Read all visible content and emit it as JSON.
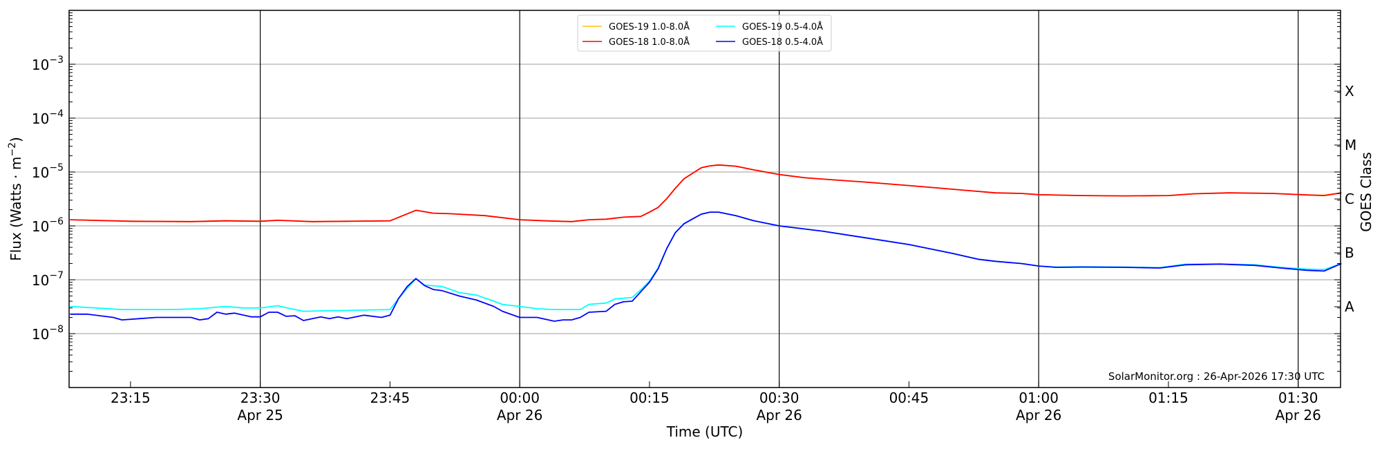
{
  "chart_data": {
    "type": "line",
    "title": "",
    "xlabel": "Time (UTC)",
    "ylabel": "Flux (Watts · m",
    "ylabel_sup": "−2",
    "ylabel_close": ")",
    "right_label": "GOES Class",
    "yscale": "log",
    "ylim": [
      1e-09,
      0.01
    ],
    "xlim": [
      "23:08",
      "01:35"
    ],
    "grid": true,
    "legend_position": "top-center",
    "watermark": "SolarMonitor.org : 26-Apr-2026 17:30 UTC",
    "y_ticks": [
      {
        "exp": -3,
        "base": "10",
        "sup": "−3"
      },
      {
        "exp": -4,
        "base": "10",
        "sup": "−4"
      },
      {
        "exp": -5,
        "base": "10",
        "sup": "−5"
      },
      {
        "exp": -6,
        "base": "10",
        "sup": "−6"
      },
      {
        "exp": -7,
        "base": "10",
        "sup": "−7"
      },
      {
        "exp": -8,
        "base": "10",
        "sup": "−8"
      }
    ],
    "x_ticks": [
      {
        "time": "23:15",
        "label": "23:15",
        "date": ""
      },
      {
        "time": "23:30",
        "label": "23:30",
        "date": "Apr 25"
      },
      {
        "time": "23:45",
        "label": "23:45",
        "date": ""
      },
      {
        "time": "00:00",
        "label": "00:00",
        "date": "Apr 26"
      },
      {
        "time": "00:15",
        "label": "00:15",
        "date": ""
      },
      {
        "time": "00:30",
        "label": "00:30",
        "date": "Apr 26"
      },
      {
        "time": "00:45",
        "label": "00:45",
        "date": ""
      },
      {
        "time": "01:00",
        "label": "01:00",
        "date": "Apr 26"
      },
      {
        "time": "01:15",
        "label": "01:15",
        "date": ""
      },
      {
        "time": "01:30",
        "label": "01:30",
        "date": "Apr 26"
      }
    ],
    "goes_classes": [
      {
        "label": "X",
        "exp": -3.5
      },
      {
        "label": "M",
        "exp": -4.5
      },
      {
        "label": "C",
        "exp": -5.5
      },
      {
        "label": "B",
        "exp": -6.5
      },
      {
        "label": "A",
        "exp": -7.5
      }
    ],
    "series": [
      {
        "name": "GOES-19 1.0-8.0Å",
        "color": "#ffc000",
        "points": [
          [
            "23:08",
            1.3e-06
          ],
          [
            "23:15",
            1.22e-06
          ],
          [
            "23:22",
            1.2e-06
          ],
          [
            "23:26",
            1.25e-06
          ],
          [
            "23:30",
            1.22e-06
          ],
          [
            "23:32",
            1.27e-06
          ],
          [
            "23:36",
            1.2e-06
          ],
          [
            "23:40",
            1.22e-06
          ],
          [
            "23:45",
            1.24e-06
          ],
          [
            "23:48",
            1.95e-06
          ],
          [
            "23:50",
            1.72e-06
          ],
          [
            "23:52",
            1.68e-06
          ],
          [
            "23:56",
            1.55e-06
          ],
          [
            "00:00",
            1.3e-06
          ],
          [
            "00:03",
            1.24e-06
          ],
          [
            "00:06",
            1.2e-06
          ],
          [
            "00:08",
            1.3e-06
          ],
          [
            "00:10",
            1.33e-06
          ],
          [
            "00:12",
            1.45e-06
          ],
          [
            "00:14",
            1.5e-06
          ],
          [
            "00:15",
            1.8e-06
          ],
          [
            "00:16",
            2.2e-06
          ],
          [
            "00:17",
            3.2e-06
          ],
          [
            "00:18",
            5e-06
          ],
          [
            "00:19",
            7.5e-06
          ],
          [
            "00:20",
            9.5e-06
          ],
          [
            "00:21",
            1.2e-05
          ],
          [
            "00:22",
            1.3e-05
          ],
          [
            "00:23",
            1.35e-05
          ],
          [
            "00:25",
            1.28e-05
          ],
          [
            "00:27",
            1.1e-05
          ],
          [
            "00:30",
            9e-06
          ],
          [
            "00:33",
            7.8e-06
          ],
          [
            "00:36",
            7.2e-06
          ],
          [
            "00:40",
            6.5e-06
          ],
          [
            "00:45",
            5.6e-06
          ],
          [
            "00:50",
            4.8e-06
          ],
          [
            "00:55",
            4.1e-06
          ],
          [
            "00:58",
            4e-06
          ],
          [
            "01:00",
            3.8e-06
          ],
          [
            "01:05",
            3.65e-06
          ],
          [
            "01:10",
            3.6e-06
          ],
          [
            "01:15",
            3.65e-06
          ],
          [
            "01:18",
            3.95e-06
          ],
          [
            "01:22",
            4.1e-06
          ],
          [
            "01:27",
            4e-06
          ],
          [
            "01:31",
            3.75e-06
          ],
          [
            "01:33",
            3.7e-06
          ],
          [
            "01:35",
            4.1e-06
          ]
        ]
      },
      {
        "name": "GOES-18 1.0-8.0Å",
        "color": "#ff0000",
        "points": [
          [
            "23:08",
            1.3e-06
          ],
          [
            "23:15",
            1.22e-06
          ],
          [
            "23:22",
            1.2e-06
          ],
          [
            "23:26",
            1.24e-06
          ],
          [
            "23:30",
            1.22e-06
          ],
          [
            "23:32",
            1.27e-06
          ],
          [
            "23:36",
            1.2e-06
          ],
          [
            "23:40",
            1.22e-06
          ],
          [
            "23:45",
            1.24e-06
          ],
          [
            "23:48",
            1.95e-06
          ],
          [
            "23:50",
            1.72e-06
          ],
          [
            "23:52",
            1.68e-06
          ],
          [
            "23:56",
            1.55e-06
          ],
          [
            "00:00",
            1.3e-06
          ],
          [
            "00:03",
            1.24e-06
          ],
          [
            "00:06",
            1.2e-06
          ],
          [
            "00:08",
            1.3e-06
          ],
          [
            "00:10",
            1.33e-06
          ],
          [
            "00:12",
            1.45e-06
          ],
          [
            "00:14",
            1.5e-06
          ],
          [
            "00:15",
            1.8e-06
          ],
          [
            "00:16",
            2.2e-06
          ],
          [
            "00:17",
            3.2e-06
          ],
          [
            "00:18",
            5e-06
          ],
          [
            "00:19",
            7.5e-06
          ],
          [
            "00:20",
            9.5e-06
          ],
          [
            "00:21",
            1.2e-05
          ],
          [
            "00:22",
            1.3e-05
          ],
          [
            "00:23",
            1.35e-05
          ],
          [
            "00:25",
            1.28e-05
          ],
          [
            "00:27",
            1.1e-05
          ],
          [
            "00:30",
            9e-06
          ],
          [
            "00:33",
            7.8e-06
          ],
          [
            "00:36",
            7.2e-06
          ],
          [
            "00:40",
            6.5e-06
          ],
          [
            "00:45",
            5.6e-06
          ],
          [
            "00:50",
            4.8e-06
          ],
          [
            "00:55",
            4.1e-06
          ],
          [
            "00:58",
            4e-06
          ],
          [
            "01:00",
            3.8e-06
          ],
          [
            "01:05",
            3.65e-06
          ],
          [
            "01:10",
            3.6e-06
          ],
          [
            "01:15",
            3.65e-06
          ],
          [
            "01:18",
            3.95e-06
          ],
          [
            "01:22",
            4.1e-06
          ],
          [
            "01:27",
            4e-06
          ],
          [
            "01:31",
            3.75e-06
          ],
          [
            "01:33",
            3.65e-06
          ],
          [
            "01:35",
            4.1e-06
          ]
        ]
      },
      {
        "name": "GOES-19 0.5-4.0Å",
        "color": "#00ffff",
        "points": [
          [
            "23:08",
            3.2e-08
          ],
          [
            "23:11",
            3e-08
          ],
          [
            "23:14",
            2.8e-08
          ],
          [
            "23:17",
            2.8e-08
          ],
          [
            "23:20",
            2.8e-08
          ],
          [
            "23:23",
            2.9e-08
          ],
          [
            "23:26",
            3.2e-08
          ],
          [
            "23:28",
            3e-08
          ],
          [
            "23:30",
            3e-08
          ],
          [
            "23:32",
            3.3e-08
          ],
          [
            "23:34",
            2.8e-08
          ],
          [
            "23:35",
            2.6e-08
          ],
          [
            "23:40",
            2.7e-08
          ],
          [
            "23:45",
            2.8e-08
          ],
          [
            "23:46",
            4.5e-08
          ],
          [
            "23:47",
            7e-08
          ],
          [
            "23:48",
            1.05e-07
          ],
          [
            "23:49",
            8e-08
          ],
          [
            "23:51",
            7.5e-08
          ],
          [
            "23:53",
            5.8e-08
          ],
          [
            "23:55",
            5.2e-08
          ],
          [
            "23:57",
            4e-08
          ],
          [
            "23:58",
            3.5e-08
          ],
          [
            "00:00",
            3.2e-08
          ],
          [
            "00:02",
            2.9e-08
          ],
          [
            "00:04",
            2.8e-08
          ],
          [
            "00:07",
            2.8e-08
          ],
          [
            "00:08",
            3.5e-08
          ],
          [
            "00:10",
            3.7e-08
          ],
          [
            "00:11",
            4.4e-08
          ],
          [
            "00:13",
            4.7e-08
          ],
          [
            "00:14",
            6.5e-08
          ],
          [
            "00:15",
            9.5e-08
          ],
          [
            "00:16",
            1.65e-07
          ],
          [
            "00:17",
            3.8e-07
          ],
          [
            "00:18",
            7.5e-07
          ],
          [
            "00:19",
            1.1e-06
          ],
          [
            "00:20",
            1.35e-06
          ],
          [
            "00:21",
            1.65e-06
          ],
          [
            "00:22",
            1.8e-06
          ],
          [
            "00:23",
            1.8e-06
          ],
          [
            "00:25",
            1.55e-06
          ],
          [
            "00:27",
            1.25e-06
          ],
          [
            "00:30",
            1e-06
          ],
          [
            "00:35",
            8e-07
          ],
          [
            "00:40",
            6e-07
          ],
          [
            "00:45",
            4.5e-07
          ],
          [
            "00:50",
            3.1e-07
          ],
          [
            "00:53",
            2.4e-07
          ],
          [
            "00:55",
            2.2e-07
          ],
          [
            "00:58",
            2e-07
          ],
          [
            "01:00",
            1.8e-07
          ],
          [
            "01:02",
            1.72e-07
          ],
          [
            "01:05",
            1.74e-07
          ],
          [
            "01:10",
            1.72e-07
          ],
          [
            "01:14",
            1.68e-07
          ],
          [
            "01:17",
            1.95e-07
          ],
          [
            "01:21",
            1.98e-07
          ],
          [
            "01:25",
            1.9e-07
          ],
          [
            "01:28",
            1.7e-07
          ],
          [
            "01:31",
            1.58e-07
          ],
          [
            "01:33",
            1.55e-07
          ],
          [
            "01:35",
            2e-07
          ]
        ]
      },
      {
        "name": "GOES-18 0.5-4.0Å",
        "color": "#0000ff",
        "points": [
          [
            "23:08",
            2.3e-08
          ],
          [
            "23:10",
            2.3e-08
          ],
          [
            "23:13",
            2e-08
          ],
          [
            "23:14",
            1.8e-08
          ],
          [
            "23:16",
            1.9e-08
          ],
          [
            "23:18",
            2e-08
          ],
          [
            "23:22",
            2e-08
          ],
          [
            "23:23",
            1.8e-08
          ],
          [
            "23:24",
            1.9e-08
          ],
          [
            "23:25",
            2.5e-08
          ],
          [
            "23:26",
            2.3e-08
          ],
          [
            "23:27",
            2.4e-08
          ],
          [
            "23:29",
            2.05e-08
          ],
          [
            "23:30",
            2.05e-08
          ],
          [
            "23:31",
            2.5e-08
          ],
          [
            "23:32",
            2.5e-08
          ],
          [
            "23:33",
            2.1e-08
          ],
          [
            "23:34",
            2.15e-08
          ],
          [
            "23:35",
            1.75e-08
          ],
          [
            "23:37",
            2.05e-08
          ],
          [
            "23:38",
            1.9e-08
          ],
          [
            "23:39",
            2.05e-08
          ],
          [
            "23:40",
            1.9e-08
          ],
          [
            "23:42",
            2.2e-08
          ],
          [
            "23:44",
            2e-08
          ],
          [
            "23:45",
            2.2e-08
          ],
          [
            "23:46",
            4.5e-08
          ],
          [
            "23:47",
            7.5e-08
          ],
          [
            "23:48",
            1.05e-07
          ],
          [
            "23:49",
            7.8e-08
          ],
          [
            "23:50",
            6.6e-08
          ],
          [
            "23:51",
            6.3e-08
          ],
          [
            "23:53",
            5e-08
          ],
          [
            "23:55",
            4.2e-08
          ],
          [
            "23:57",
            3.2e-08
          ],
          [
            "23:58",
            2.6e-08
          ],
          [
            "00:00",
            2e-08
          ],
          [
            "00:02",
            2e-08
          ],
          [
            "00:04",
            1.7e-08
          ],
          [
            "00:05",
            1.8e-08
          ],
          [
            "00:06",
            1.8e-08
          ],
          [
            "00:07",
            2e-08
          ],
          [
            "00:08",
            2.5e-08
          ],
          [
            "00:10",
            2.6e-08
          ],
          [
            "00:11",
            3.5e-08
          ],
          [
            "00:12",
            3.9e-08
          ],
          [
            "00:13",
            4e-08
          ],
          [
            "00:14",
            6e-08
          ],
          [
            "00:15",
            9e-08
          ],
          [
            "00:16",
            1.6e-07
          ],
          [
            "00:17",
            3.8e-07
          ],
          [
            "00:18",
            7.5e-07
          ],
          [
            "00:19",
            1.1e-06
          ],
          [
            "00:20",
            1.35e-06
          ],
          [
            "00:21",
            1.65e-06
          ],
          [
            "00:22",
            1.8e-06
          ],
          [
            "00:23",
            1.8e-06
          ],
          [
            "00:25",
            1.55e-06
          ],
          [
            "00:27",
            1.25e-06
          ],
          [
            "00:30",
            1e-06
          ],
          [
            "00:35",
            8e-07
          ],
          [
            "00:40",
            6e-07
          ],
          [
            "00:45",
            4.5e-07
          ],
          [
            "00:50",
            3.1e-07
          ],
          [
            "00:53",
            2.4e-07
          ],
          [
            "00:55",
            2.2e-07
          ],
          [
            "00:58",
            2e-07
          ],
          [
            "01:00",
            1.8e-07
          ],
          [
            "01:02",
            1.7e-07
          ],
          [
            "01:05",
            1.72e-07
          ],
          [
            "01:10",
            1.7e-07
          ],
          [
            "01:14",
            1.65e-07
          ],
          [
            "01:17",
            1.9e-07
          ],
          [
            "01:21",
            1.95e-07
          ],
          [
            "01:25",
            1.85e-07
          ],
          [
            "01:28",
            1.65e-07
          ],
          [
            "01:31",
            1.5e-07
          ],
          [
            "01:33",
            1.45e-07
          ],
          [
            "01:35",
            2e-07
          ]
        ]
      }
    ]
  }
}
